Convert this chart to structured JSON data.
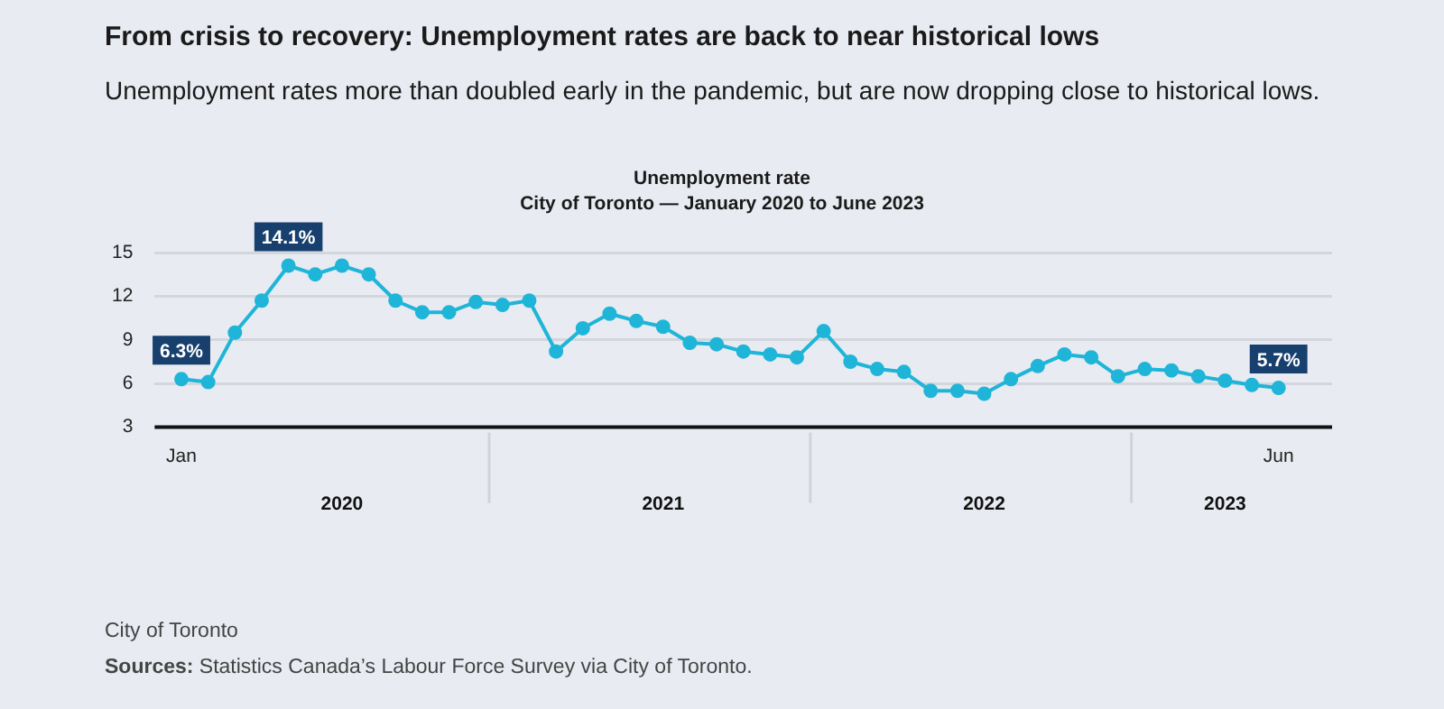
{
  "chart_data": {
    "type": "line",
    "title": "From crisis to recovery: Unemployment rates are back to near historical lows",
    "subtitle": "Unemployment rates more than doubled early in the pandemic, but are now dropping close to historical lows.",
    "annotations": [
      "Unemployment rate",
      "City of Toronto — January 2020 to June 2023",
      "City of Toronto",
      "Sources: Statistics Canada’s Labour Force Survey via City of Toronto."
    ],
    "x": [
      "2020-01",
      "2020-02",
      "2020-03",
      "2020-04",
      "2020-05",
      "2020-06",
      "2020-07",
      "2020-08",
      "2020-09",
      "2020-10",
      "2020-11",
      "2020-12",
      "2021-01",
      "2021-02",
      "2021-03",
      "2021-04",
      "2021-05",
      "2021-06",
      "2021-07",
      "2021-08",
      "2021-09",
      "2021-10",
      "2021-11",
      "2021-12",
      "2022-01",
      "2022-02",
      "2022-03",
      "2022-04",
      "2022-05",
      "2022-06",
      "2022-07",
      "2022-08",
      "2022-09",
      "2022-10",
      "2022-11",
      "2022-12",
      "2023-01",
      "2023-02",
      "2023-03",
      "2023-04",
      "2023-05",
      "2023-06"
    ],
    "xlim": [
      "2019-12",
      "2023-08"
    ],
    "xticks": [
      {
        "value": "2020-01",
        "label": "Jan"
      },
      {
        "value": "2023-06",
        "label": "Jun"
      }
    ],
    "x2lim": [
      "2019-12",
      "2023-08"
    ],
    "x2ticks": [
      {
        "value": "2020-07",
        "label": "2020"
      },
      {
        "value": "2021-07",
        "label": "2021"
      },
      {
        "value": "2022-07",
        "label": "2022"
      },
      {
        "value": "2023-04",
        "label": "2023"
      }
    ],
    "series": [
      {
        "color": "#1fb5d8",
        "values": [
          6.3,
          6.1,
          9.5,
          11.7,
          14.1,
          13.5,
          14.1,
          13.5,
          11.7,
          10.9,
          10.9,
          11.6,
          11.4,
          11.7,
          8.2,
          9.8,
          10.8,
          10.3,
          9.9,
          8.8,
          8.7,
          8.2,
          8.0,
          7.8,
          9.6,
          7.5,
          7.0,
          6.8,
          5.5,
          5.5,
          5.3,
          6.3,
          7.2,
          8.0,
          7.8,
          6.5,
          7.0,
          6.9,
          6.5,
          6.2,
          5.9,
          5.7
        ],
        "value_labels": [
          "6.3%",
          null,
          null,
          null,
          "14.1%",
          null,
          null,
          null,
          null,
          null,
          null,
          null,
          null,
          null,
          null,
          null,
          null,
          null,
          null,
          null,
          null,
          null,
          null,
          null,
          null,
          null,
          null,
          null,
          null,
          null,
          null,
          null,
          null,
          null,
          null,
          null,
          null,
          null,
          null,
          null,
          null,
          "5.7%"
        ]
      }
    ],
    "ylim": [
      3,
      15
    ],
    "yticks": [
      3,
      6,
      9,
      12,
      15
    ],
    "grid": "y",
    "marker": "circle",
    "line_style": "solid",
    "legend": false
  }
}
